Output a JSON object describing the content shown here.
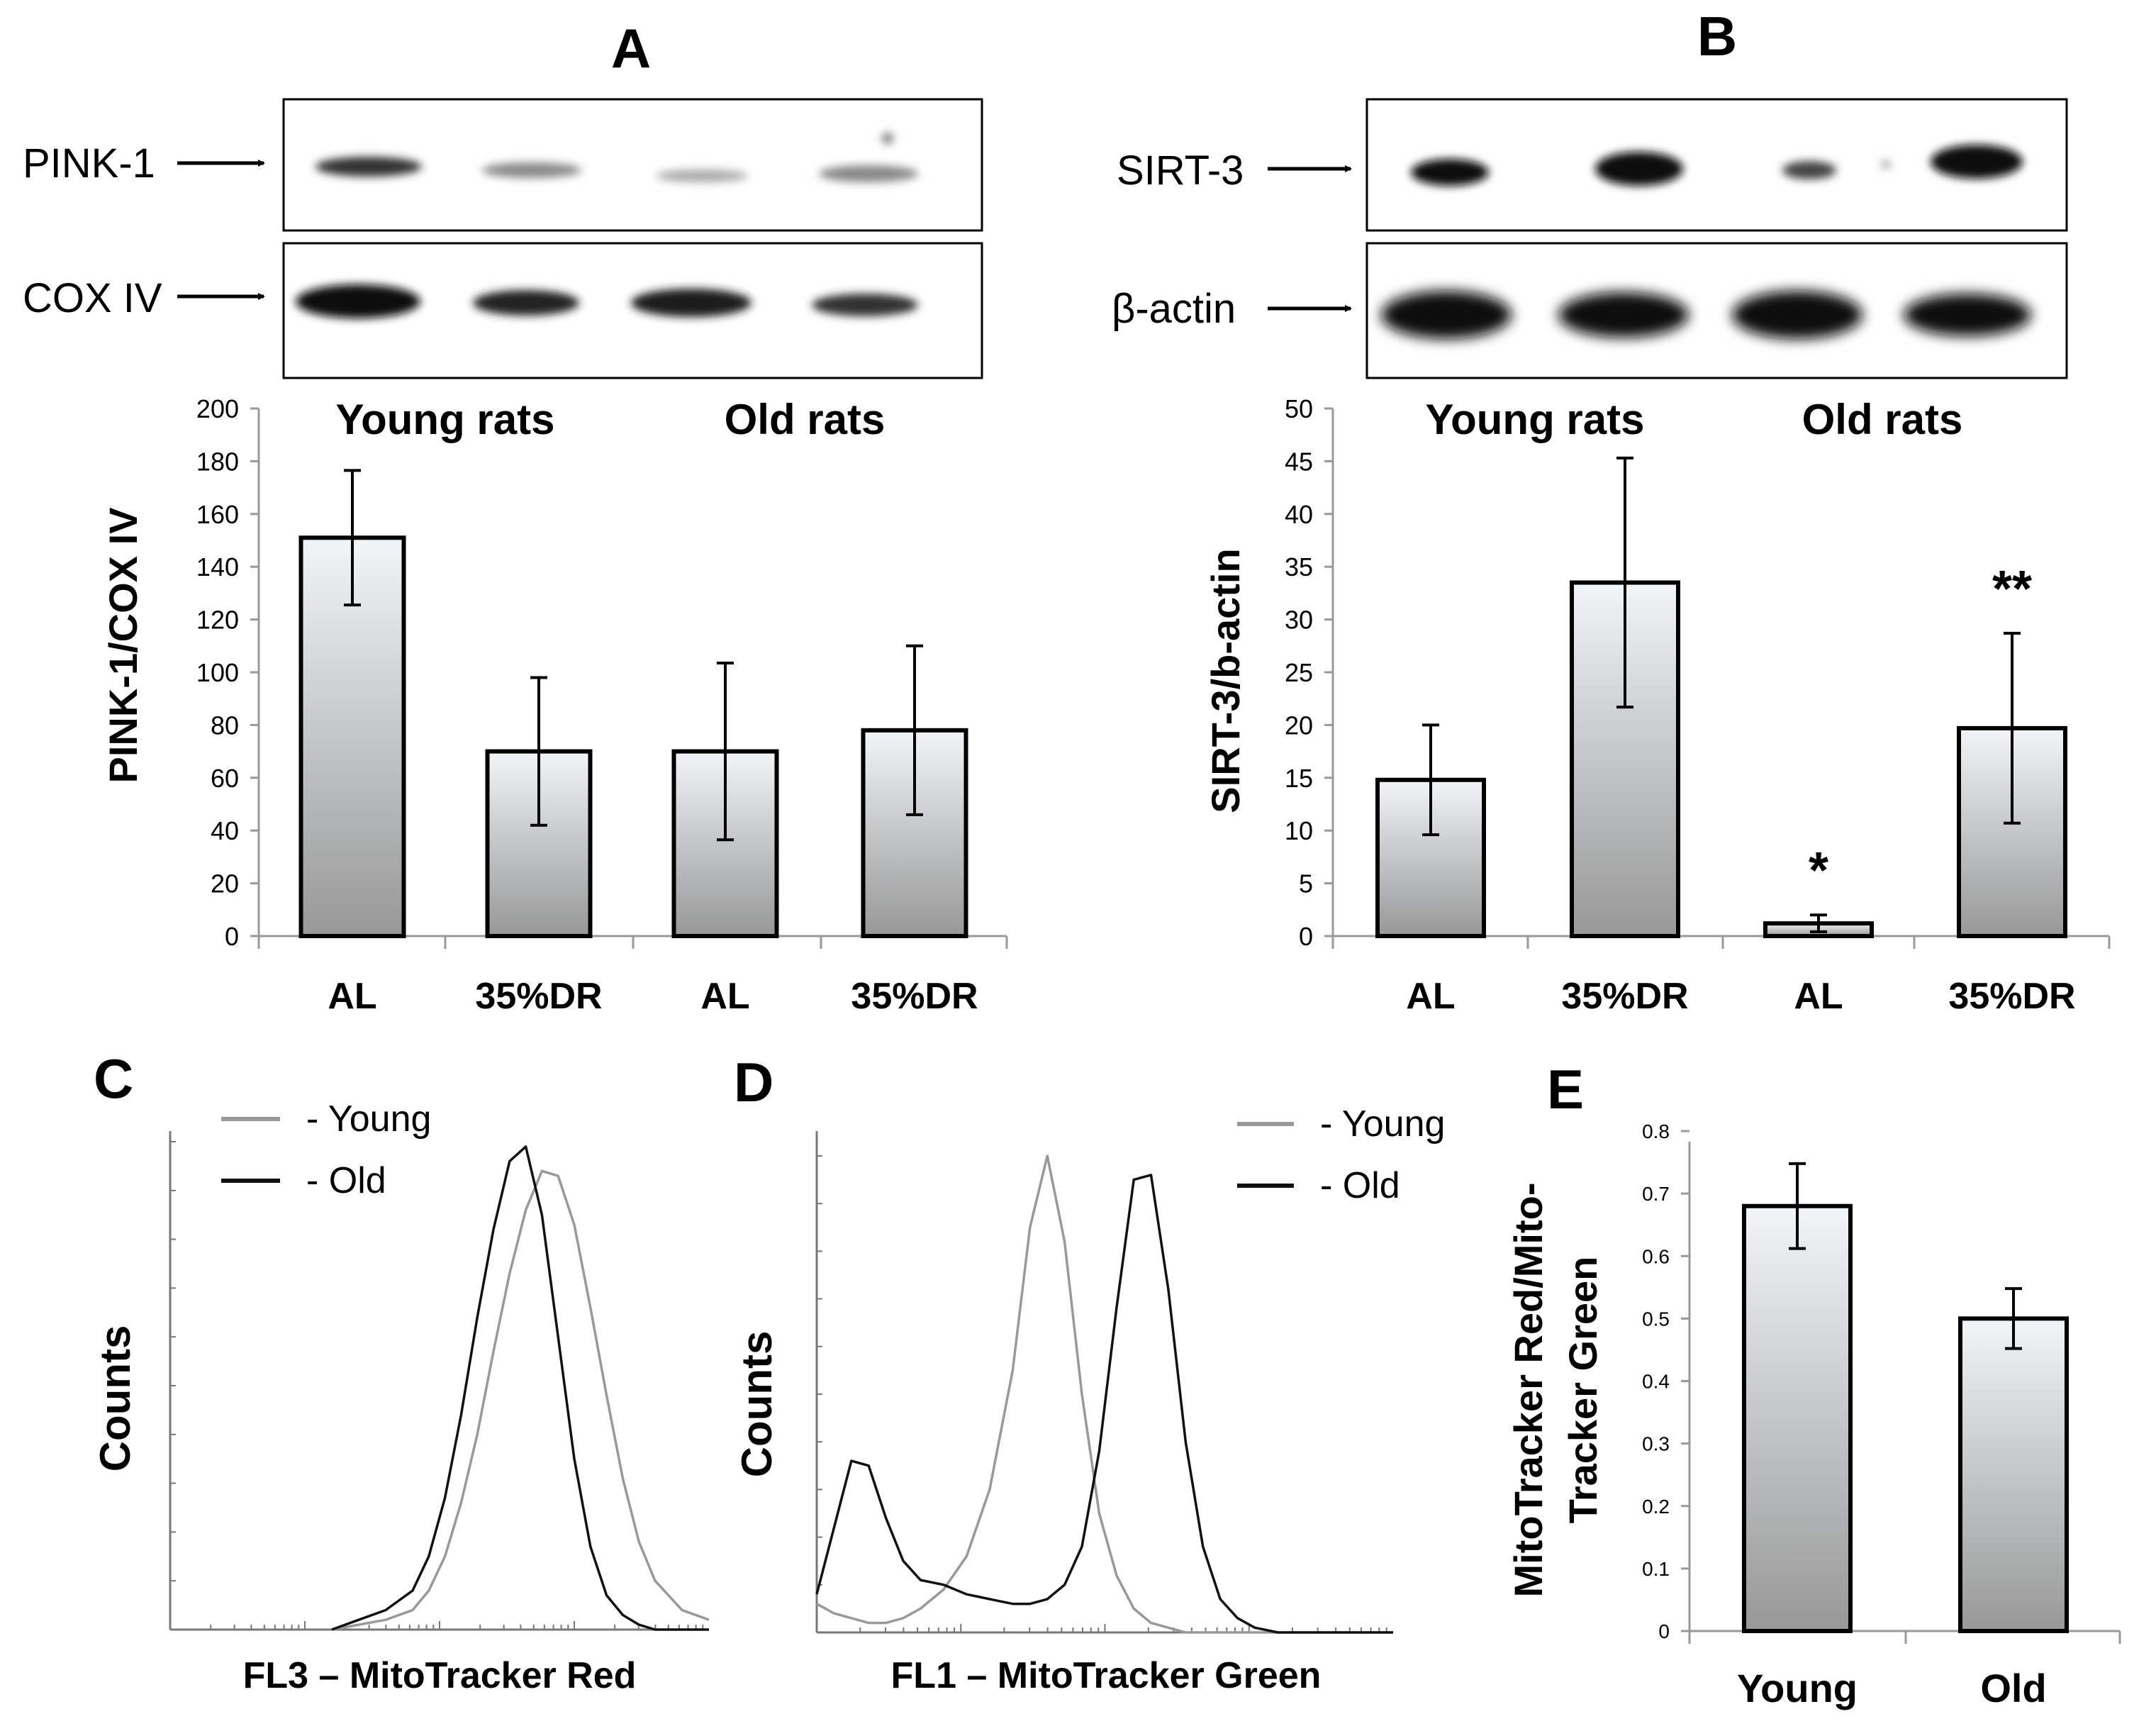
{
  "panel_letters": {
    "a": "A",
    "b": "B",
    "c": "C",
    "d": "D",
    "e": "E"
  },
  "blots": {
    "a": {
      "top_label": "PINK-1",
      "bottom_label": "COX IV"
    },
    "b": {
      "top_label": "SIRT-3",
      "bottom_label": "β-actin"
    }
  },
  "chart_data": [
    {
      "id": "A",
      "type": "bar",
      "ylabel": "PINK-1/COX IV",
      "ylim": [
        0,
        200
      ],
      "ytick_values": [
        0,
        20,
        40,
        60,
        80,
        100,
        120,
        140,
        160,
        180,
        200
      ],
      "ytick_labels": [
        "0",
        "20",
        "40",
        "60",
        "80",
        "100",
        "120",
        "140",
        "160",
        "180",
        "200"
      ],
      "group_labels": [
        "Young rats",
        "Old rats"
      ],
      "categories": [
        "AL",
        "35%DR",
        "AL",
        "35%DR"
      ],
      "values": [
        151,
        70,
        70,
        78
      ],
      "errors": [
        25.5,
        28,
        33.5,
        32
      ],
      "annotations": [
        "",
        "",
        "",
        ""
      ]
    },
    {
      "id": "B",
      "type": "bar",
      "ylabel": "SIRT-3/b-actin",
      "ylim": [
        0,
        50
      ],
      "ytick_values": [
        0,
        5,
        10,
        15,
        20,
        25,
        30,
        35,
        40,
        45,
        50
      ],
      "ytick_labels": [
        "0",
        "5",
        "10",
        "15",
        "20",
        "25",
        "30",
        "35",
        "40",
        "45",
        "50"
      ],
      "group_labels": [
        "Young rats",
        "Old rats"
      ],
      "categories": [
        "AL",
        "35%DR",
        "AL",
        "35%DR"
      ],
      "values": [
        14.8,
        33.5,
        1.2,
        19.7
      ],
      "errors": [
        5.2,
        11.8,
        0.8,
        9.0
      ],
      "annotations": [
        "",
        "",
        "*",
        "**"
      ]
    },
    {
      "id": "C",
      "type": "line",
      "xlabel": "FL3 – MitoTracker Red",
      "ylabel": "Counts",
      "legend": [
        "- Young",
        "- Old"
      ],
      "x": [
        0.3,
        0.35,
        0.4,
        0.45,
        0.48,
        0.51,
        0.54,
        0.57,
        0.6,
        0.63,
        0.66,
        0.69,
        0.72,
        0.75,
        0.78,
        0.81,
        0.84,
        0.87,
        0.9,
        0.95,
        1.0
      ],
      "series": [
        {
          "name": "Young",
          "color": "#999999",
          "values": [
            0,
            1,
            2,
            4,
            8,
            15,
            26,
            40,
            57,
            73,
            86,
            94,
            93,
            83,
            66,
            48,
            31,
            18,
            10,
            4,
            2
          ]
        },
        {
          "name": "Old",
          "color": "#111111",
          "values": [
            0,
            2,
            4,
            8,
            15,
            27,
            44,
            64,
            82,
            96,
            99,
            85,
            60,
            35,
            17,
            7,
            3,
            1,
            0,
            0,
            0
          ]
        }
      ]
    },
    {
      "id": "D",
      "type": "line",
      "xlabel": "FL1 – MitoTracker Green",
      "ylabel": "Counts",
      "legend": [
        "- Young",
        "- Old"
      ],
      "x": [
        0.0,
        0.03,
        0.06,
        0.09,
        0.12,
        0.15,
        0.18,
        0.22,
        0.26,
        0.3,
        0.34,
        0.37,
        0.4,
        0.43,
        0.46,
        0.49,
        0.52,
        0.55,
        0.58,
        0.61,
        0.64,
        0.67,
        0.7,
        0.73,
        0.76,
        0.8,
        0.85,
        0.9,
        1.0
      ],
      "series": [
        {
          "name": "Young",
          "color": "#999999",
          "values": [
            6,
            4,
            3,
            2,
            2,
            3,
            5,
            9,
            16,
            30,
            55,
            85,
            100,
            82,
            50,
            25,
            12,
            5,
            2,
            1,
            0,
            0,
            0,
            0,
            0,
            0,
            0,
            0,
            0
          ]
        },
        {
          "name": "Old",
          "color": "#111111",
          "values": [
            8,
            22,
            36,
            35,
            24,
            15,
            11,
            10,
            8,
            7,
            6,
            6,
            7,
            10,
            18,
            38,
            68,
            95,
            96,
            72,
            40,
            18,
            7,
            3,
            1,
            0,
            0,
            0,
            0
          ]
        }
      ]
    },
    {
      "id": "E",
      "type": "bar",
      "ylabel_lines": [
        "MitoTracker Red/Mito-",
        "Tracker Green"
      ],
      "ylim": [
        0,
        0.8
      ],
      "ytick_values": [
        0,
        0.1,
        0.2,
        0.3,
        0.4,
        0.5,
        0.6,
        0.7,
        0.8
      ],
      "ytick_labels": [
        "0",
        "0.1",
        "0.2",
        "0.3",
        "0.4",
        "0.5",
        "0.6",
        "0.7",
        "0.8"
      ],
      "categories": [
        "Young",
        "Old"
      ],
      "values": [
        0.68,
        0.5
      ],
      "errors": [
        0.068,
        0.048
      ]
    }
  ]
}
